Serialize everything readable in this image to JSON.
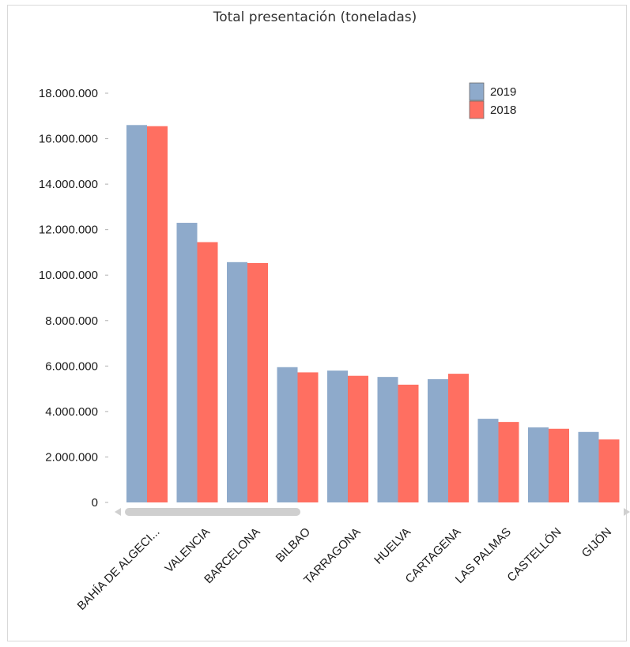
{
  "chart_data": {
    "type": "bar",
    "title": "Total presentación (toneladas)",
    "categories": [
      "BAHÍA DE ALGECI...",
      "VALENCIA",
      "BARCELONA",
      "BILBAO",
      "TARRAGONA",
      "HUELVA",
      "CARTAGENA",
      "LAS PALMAS",
      "CASTELLÓN",
      "GIJÓN"
    ],
    "series": [
      {
        "name": "2019",
        "color": "#8eaacb",
        "values": [
          16600000,
          12300000,
          10570000,
          5950000,
          5800000,
          5520000,
          5420000,
          3680000,
          3300000,
          3100000
        ]
      },
      {
        "name": "2018",
        "color": "#ff6f61",
        "values": [
          16550000,
          11450000,
          10530000,
          5720000,
          5570000,
          5180000,
          5660000,
          3540000,
          3240000,
          2770000
        ]
      }
    ],
    "ylim": [
      0,
      18000000
    ],
    "yticks": [
      0,
      2000000,
      4000000,
      6000000,
      8000000,
      10000000,
      12000000,
      14000000,
      16000000,
      18000000
    ],
    "ytick_labels": [
      "0",
      "2.000.000",
      "4.000.000",
      "6.000.000",
      "8.000.000",
      "10.000.000",
      "12.000.000",
      "14.000.000",
      "16.000.000",
      "18.000.000"
    ],
    "xlabel": "",
    "ylabel": "",
    "grid": false,
    "legend": "top-right"
  }
}
